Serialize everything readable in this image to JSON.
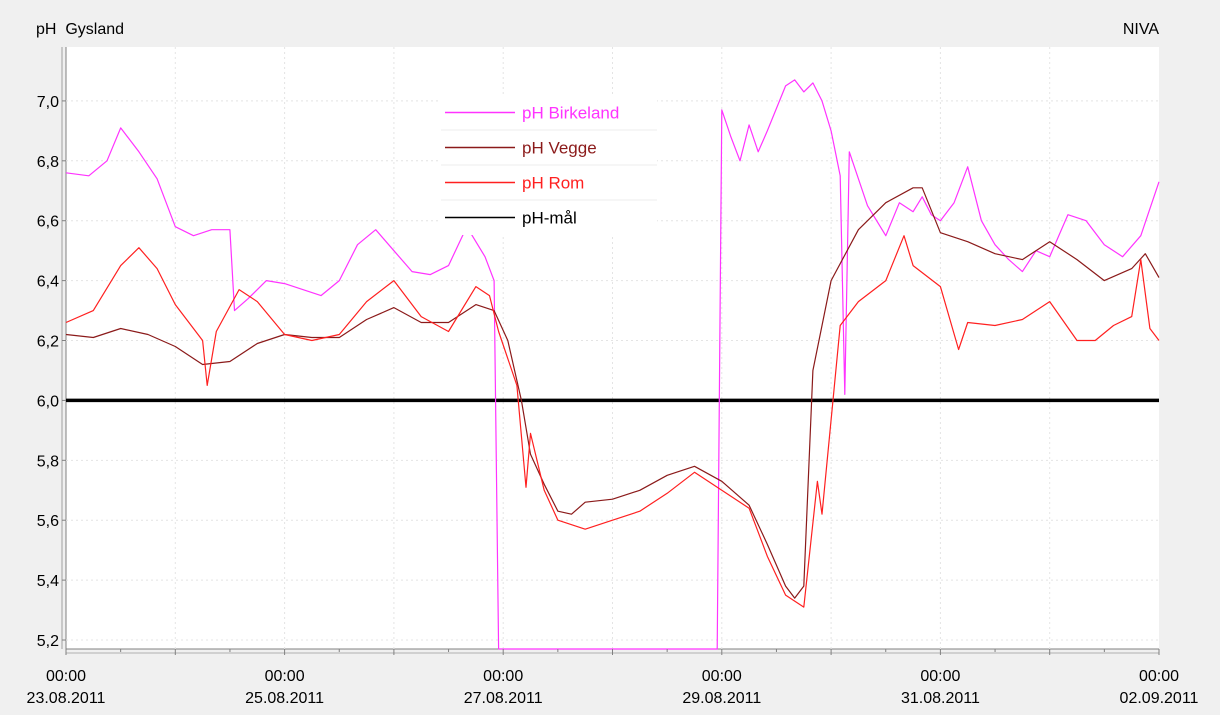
{
  "chart_data": {
    "type": "line",
    "title": "pH  Gysland",
    "source_label": "NIVA",
    "ylim": [
      5.17,
      7.18
    ],
    "yticks": [
      5.2,
      5.4,
      5.6,
      5.8,
      6.0,
      6.2,
      6.4,
      6.6,
      6.8,
      7.0
    ],
    "ytick_labels": [
      "5,2",
      "5,4",
      "5,6",
      "5,8",
      "6,0",
      "6,2",
      "6,4",
      "6,6",
      "6,8",
      "7,0"
    ],
    "xlim": [
      "2011-08-23T00:00",
      "2011-09-02T00:00"
    ],
    "xticks": [
      {
        "time": "00:00",
        "date": "23.08.2011"
      },
      {
        "time": "00:00",
        "date": "25.08.2011"
      },
      {
        "time": "00:00",
        "date": "27.08.2011"
      },
      {
        "time": "00:00",
        "date": "29.08.2011"
      },
      {
        "time": "00:00",
        "date": "31.08.2011"
      },
      {
        "time": "00:00",
        "date": "02.09.2011"
      }
    ],
    "grid": true,
    "legend_position": "top-center",
    "series": [
      {
        "name": "pH Birkeland",
        "color": "#ff33ff",
        "points": [
          [
            "2011-08-23T00:00",
            6.76
          ],
          [
            "2011-08-23T05:00",
            6.75
          ],
          [
            "2011-08-23T09:00",
            6.8
          ],
          [
            "2011-08-23T12:00",
            6.91
          ],
          [
            "2011-08-23T16:00",
            6.83
          ],
          [
            "2011-08-23T20:00",
            6.74
          ],
          [
            "2011-08-24T00:00",
            6.58
          ],
          [
            "2011-08-24T04:00",
            6.55
          ],
          [
            "2011-08-24T08:00",
            6.57
          ],
          [
            "2011-08-24T12:00",
            6.57
          ],
          [
            "2011-08-24T13:00",
            6.3
          ],
          [
            "2011-08-24T16:00",
            6.34
          ],
          [
            "2011-08-24T20:00",
            6.4
          ],
          [
            "2011-08-25T00:00",
            6.39
          ],
          [
            "2011-08-25T04:00",
            6.37
          ],
          [
            "2011-08-25T08:00",
            6.35
          ],
          [
            "2011-08-25T12:00",
            6.4
          ],
          [
            "2011-08-25T16:00",
            6.52
          ],
          [
            "2011-08-25T20:00",
            6.57
          ],
          [
            "2011-08-26T00:00",
            6.5
          ],
          [
            "2011-08-26T04:00",
            6.43
          ],
          [
            "2011-08-26T08:00",
            6.42
          ],
          [
            "2011-08-26T12:00",
            6.45
          ],
          [
            "2011-08-26T16:00",
            6.58
          ],
          [
            "2011-08-26T20:00",
            6.48
          ],
          [
            "2011-08-26T22:00",
            6.4
          ],
          [
            "2011-08-26T23:00",
            5.17
          ],
          [
            "2011-08-28T23:00",
            5.17
          ],
          [
            "2011-08-29T00:00",
            6.97
          ],
          [
            "2011-08-29T02:00",
            6.88
          ],
          [
            "2011-08-29T04:00",
            6.8
          ],
          [
            "2011-08-29T06:00",
            6.92
          ],
          [
            "2011-08-29T08:00",
            6.83
          ],
          [
            "2011-08-29T10:00",
            6.9
          ],
          [
            "2011-08-29T14:00",
            7.05
          ],
          [
            "2011-08-29T16:00",
            7.07
          ],
          [
            "2011-08-29T18:00",
            7.03
          ],
          [
            "2011-08-29T20:00",
            7.06
          ],
          [
            "2011-08-29T22:00",
            7.0
          ],
          [
            "2011-08-30T00:00",
            6.9
          ],
          [
            "2011-08-30T02:00",
            6.75
          ],
          [
            "2011-08-30T03:00",
            6.02
          ],
          [
            "2011-08-30T04:00",
            6.83
          ],
          [
            "2011-08-30T08:00",
            6.65
          ],
          [
            "2011-08-30T12:00",
            6.55
          ],
          [
            "2011-08-30T15:00",
            6.66
          ],
          [
            "2011-08-30T18:00",
            6.63
          ],
          [
            "2011-08-30T20:00",
            6.68
          ],
          [
            "2011-08-30T22:00",
            6.62
          ],
          [
            "2011-08-31T00:00",
            6.6
          ],
          [
            "2011-08-31T03:00",
            6.66
          ],
          [
            "2011-08-31T06:00",
            6.78
          ],
          [
            "2011-08-31T09:00",
            6.6
          ],
          [
            "2011-08-31T12:00",
            6.52
          ],
          [
            "2011-08-31T15:00",
            6.47
          ],
          [
            "2011-08-31T18:00",
            6.43
          ],
          [
            "2011-08-31T21:00",
            6.5
          ],
          [
            "2011-09-01T00:00",
            6.48
          ],
          [
            "2011-09-01T04:00",
            6.62
          ],
          [
            "2011-09-01T08:00",
            6.6
          ],
          [
            "2011-09-01T12:00",
            6.52
          ],
          [
            "2011-09-01T16:00",
            6.48
          ],
          [
            "2011-09-01T20:00",
            6.55
          ],
          [
            "2011-09-02T00:00",
            6.73
          ]
        ]
      },
      {
        "name": "pH Vegge",
        "color": "#8b1a1a",
        "points": [
          [
            "2011-08-23T00:00",
            6.22
          ],
          [
            "2011-08-23T06:00",
            6.21
          ],
          [
            "2011-08-23T12:00",
            6.24
          ],
          [
            "2011-08-23T18:00",
            6.22
          ],
          [
            "2011-08-24T00:00",
            6.18
          ],
          [
            "2011-08-24T06:00",
            6.12
          ],
          [
            "2011-08-24T12:00",
            6.13
          ],
          [
            "2011-08-24T18:00",
            6.19
          ],
          [
            "2011-08-25T00:00",
            6.22
          ],
          [
            "2011-08-25T06:00",
            6.21
          ],
          [
            "2011-08-25T12:00",
            6.21
          ],
          [
            "2011-08-25T18:00",
            6.27
          ],
          [
            "2011-08-26T00:00",
            6.31
          ],
          [
            "2011-08-26T06:00",
            6.26
          ],
          [
            "2011-08-26T12:00",
            6.26
          ],
          [
            "2011-08-26T18:00",
            6.32
          ],
          [
            "2011-08-26T22:00",
            6.3
          ],
          [
            "2011-08-27T01:00",
            6.2
          ],
          [
            "2011-08-27T04:00",
            6.0
          ],
          [
            "2011-08-27T06:00",
            5.82
          ],
          [
            "2011-08-27T09:00",
            5.72
          ],
          [
            "2011-08-27T12:00",
            5.63
          ],
          [
            "2011-08-27T15:00",
            5.62
          ],
          [
            "2011-08-27T18:00",
            5.66
          ],
          [
            "2011-08-28T00:00",
            5.67
          ],
          [
            "2011-08-28T06:00",
            5.7
          ],
          [
            "2011-08-28T12:00",
            5.75
          ],
          [
            "2011-08-28T18:00",
            5.78
          ],
          [
            "2011-08-29T00:00",
            5.73
          ],
          [
            "2011-08-29T06:00",
            5.65
          ],
          [
            "2011-08-29T10:00",
            5.52
          ],
          [
            "2011-08-29T14:00",
            5.38
          ],
          [
            "2011-08-29T16:00",
            5.34
          ],
          [
            "2011-08-29T18:00",
            5.38
          ],
          [
            "2011-08-29T20:00",
            6.1
          ],
          [
            "2011-08-30T00:00",
            6.4
          ],
          [
            "2011-08-30T06:00",
            6.57
          ],
          [
            "2011-08-30T12:00",
            6.66
          ],
          [
            "2011-08-30T18:00",
            6.71
          ],
          [
            "2011-08-30T20:00",
            6.71
          ],
          [
            "2011-08-31T00:00",
            6.56
          ],
          [
            "2011-08-31T06:00",
            6.53
          ],
          [
            "2011-08-31T12:00",
            6.49
          ],
          [
            "2011-08-31T18:00",
            6.47
          ],
          [
            "2011-09-01T00:00",
            6.53
          ],
          [
            "2011-09-01T06:00",
            6.47
          ],
          [
            "2011-09-01T12:00",
            6.4
          ],
          [
            "2011-09-01T18:00",
            6.44
          ],
          [
            "2011-09-01T21:00",
            6.49
          ],
          [
            "2011-09-02T00:00",
            6.41
          ]
        ]
      },
      {
        "name": "pH Rom",
        "color": "#ff2020",
        "points": [
          [
            "2011-08-23T00:00",
            6.26
          ],
          [
            "2011-08-23T06:00",
            6.3
          ],
          [
            "2011-08-23T12:00",
            6.45
          ],
          [
            "2011-08-23T16:00",
            6.51
          ],
          [
            "2011-08-23T20:00",
            6.44
          ],
          [
            "2011-08-24T00:00",
            6.32
          ],
          [
            "2011-08-24T06:00",
            6.2
          ],
          [
            "2011-08-24T07:00",
            6.05
          ],
          [
            "2011-08-24T09:00",
            6.23
          ],
          [
            "2011-08-24T14:00",
            6.37
          ],
          [
            "2011-08-24T18:00",
            6.33
          ],
          [
            "2011-08-25T00:00",
            6.22
          ],
          [
            "2011-08-25T06:00",
            6.2
          ],
          [
            "2011-08-25T12:00",
            6.22
          ],
          [
            "2011-08-25T18:00",
            6.33
          ],
          [
            "2011-08-26T00:00",
            6.4
          ],
          [
            "2011-08-26T06:00",
            6.28
          ],
          [
            "2011-08-26T12:00",
            6.23
          ],
          [
            "2011-08-26T18:00",
            6.38
          ],
          [
            "2011-08-26T21:00",
            6.35
          ],
          [
            "2011-08-26T23:00",
            6.23
          ],
          [
            "2011-08-27T03:00",
            6.05
          ],
          [
            "2011-08-27T05:00",
            5.71
          ],
          [
            "2011-08-27T06:00",
            5.89
          ],
          [
            "2011-08-27T09:00",
            5.7
          ],
          [
            "2011-08-27T12:00",
            5.6
          ],
          [
            "2011-08-27T18:00",
            5.57
          ],
          [
            "2011-08-28T00:00",
            5.6
          ],
          [
            "2011-08-28T06:00",
            5.63
          ],
          [
            "2011-08-28T12:00",
            5.69
          ],
          [
            "2011-08-28T18:00",
            5.76
          ],
          [
            "2011-08-29T00:00",
            5.7
          ],
          [
            "2011-08-29T06:00",
            5.64
          ],
          [
            "2011-08-29T10:00",
            5.48
          ],
          [
            "2011-08-29T14:00",
            5.35
          ],
          [
            "2011-08-29T18:00",
            5.31
          ],
          [
            "2011-08-29T21:00",
            5.73
          ],
          [
            "2011-08-29T22:00",
            5.62
          ],
          [
            "2011-08-30T02:00",
            6.25
          ],
          [
            "2011-08-30T06:00",
            6.33
          ],
          [
            "2011-08-30T12:00",
            6.4
          ],
          [
            "2011-08-30T16:00",
            6.55
          ],
          [
            "2011-08-30T18:00",
            6.45
          ],
          [
            "2011-08-31T00:00",
            6.38
          ],
          [
            "2011-08-31T04:00",
            6.17
          ],
          [
            "2011-08-31T06:00",
            6.26
          ],
          [
            "2011-08-31T12:00",
            6.25
          ],
          [
            "2011-08-31T18:00",
            6.27
          ],
          [
            "2011-09-01T00:00",
            6.33
          ],
          [
            "2011-09-01T06:00",
            6.2
          ],
          [
            "2011-09-01T10:00",
            6.2
          ],
          [
            "2011-09-01T14:00",
            6.25
          ],
          [
            "2011-09-01T18:00",
            6.28
          ],
          [
            "2011-09-01T20:00",
            6.47
          ],
          [
            "2011-09-01T22:00",
            6.24
          ],
          [
            "2011-09-02T00:00",
            6.2
          ]
        ]
      },
      {
        "name": "pH-mål",
        "color": "#000000",
        "points": [
          [
            "2011-08-23T00:00",
            6.0
          ],
          [
            "2011-09-02T00:00",
            6.0
          ]
        ]
      }
    ]
  }
}
